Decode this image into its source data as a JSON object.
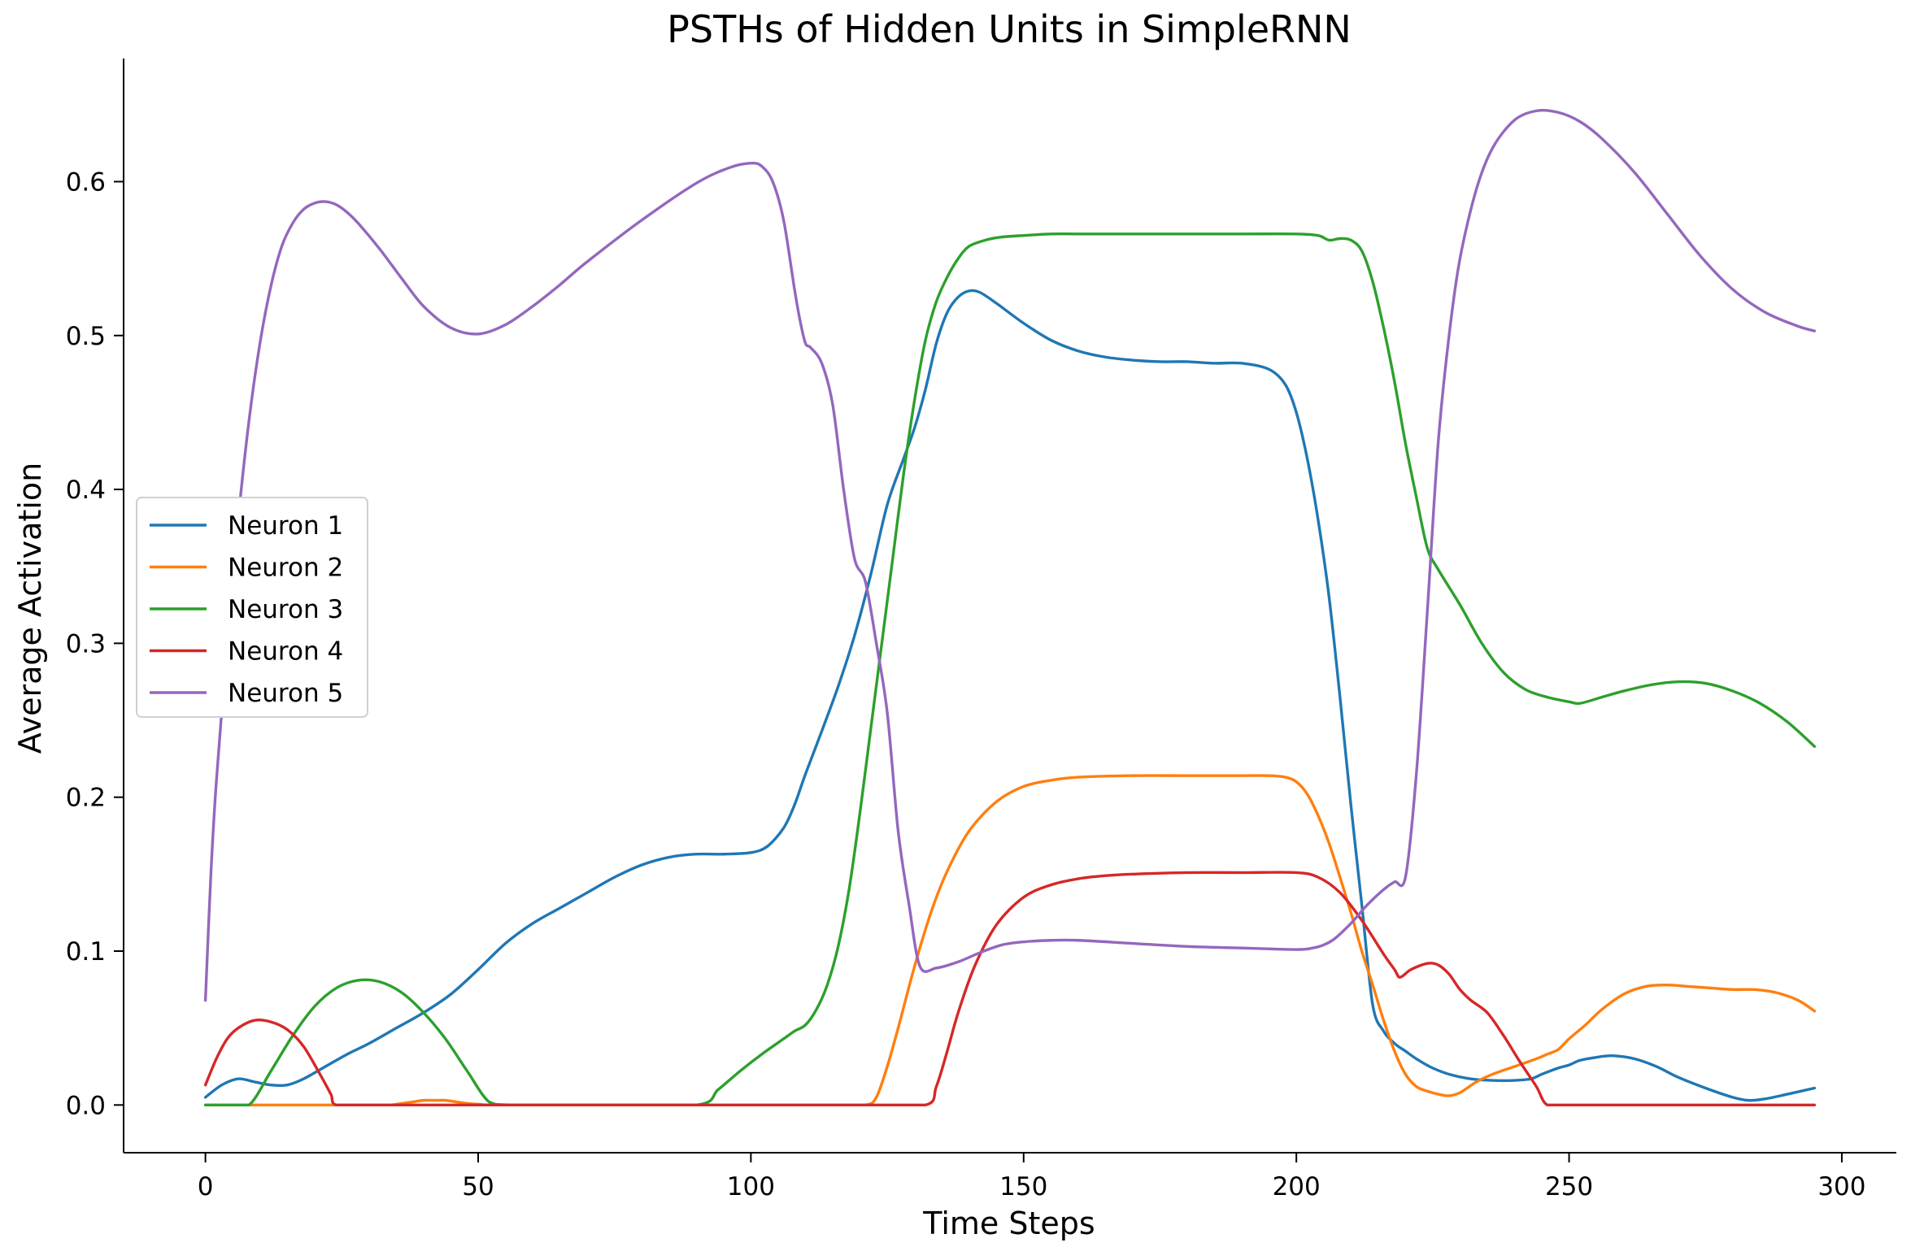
{
  "chart_data": {
    "type": "line",
    "title": "PSTHs of Hidden Units in SimpleRNN",
    "xlabel": "Time Steps",
    "ylabel": "Average Activation",
    "xlim": [
      -15,
      310
    ],
    "ylim": [
      -0.031,
      0.68
    ],
    "xticks": [
      0,
      50,
      100,
      150,
      200,
      250,
      300
    ],
    "xtick_labels": [
      "0",
      "50",
      "100",
      "150",
      "200",
      "250",
      "300"
    ],
    "yticks": [
      0.0,
      0.1,
      0.2,
      0.3,
      0.4,
      0.5,
      0.6
    ],
    "ytick_labels": [
      "0.0",
      "0.1",
      "0.2",
      "0.3",
      "0.4",
      "0.5",
      "0.6"
    ],
    "grid": false,
    "legend_position": "center-left",
    "series": [
      {
        "name": "Neuron 1",
        "color": "#1f77b4",
        "x": [
          0,
          3,
          6,
          9,
          12,
          15,
          18,
          22,
          26,
          30,
          35,
          40,
          45,
          50,
          55,
          60,
          65,
          70,
          75,
          80,
          85,
          90,
          95,
          100,
          103,
          106,
          108,
          110,
          113,
          116,
          119,
          122,
          125,
          128,
          130,
          132,
          134,
          136,
          138,
          140,
          142,
          145,
          150,
          155,
          160,
          165,
          170,
          175,
          180,
          185,
          190,
          195,
          198,
          200,
          202,
          204,
          206,
          208,
          210,
          212,
          214,
          216,
          218,
          220,
          222,
          225,
          228,
          232,
          236,
          240,
          243,
          245,
          248,
          250,
          252,
          255,
          258,
          262,
          266,
          270,
          275,
          280,
          283,
          286,
          290,
          295
        ],
        "y": [
          0.005,
          0.013,
          0.017,
          0.015,
          0.013,
          0.013,
          0.017,
          0.025,
          0.033,
          0.04,
          0.05,
          0.06,
          0.072,
          0.088,
          0.105,
          0.118,
          0.128,
          0.138,
          0.148,
          0.156,
          0.161,
          0.163,
          0.163,
          0.164,
          0.168,
          0.18,
          0.195,
          0.215,
          0.243,
          0.272,
          0.305,
          0.345,
          0.39,
          0.42,
          0.44,
          0.465,
          0.495,
          0.515,
          0.525,
          0.529,
          0.528,
          0.521,
          0.508,
          0.497,
          0.49,
          0.486,
          0.484,
          0.483,
          0.483,
          0.482,
          0.482,
          0.478,
          0.468,
          0.45,
          0.42,
          0.38,
          0.33,
          0.265,
          0.195,
          0.13,
          0.065,
          0.048,
          0.04,
          0.035,
          0.03,
          0.024,
          0.02,
          0.017,
          0.016,
          0.016,
          0.017,
          0.02,
          0.024,
          0.026,
          0.029,
          0.031,
          0.032,
          0.03,
          0.025,
          0.018,
          0.011,
          0.005,
          0.003,
          0.004,
          0.007,
          0.011
        ]
      },
      {
        "name": "Neuron 2",
        "color": "#ff7f0e",
        "x": [
          0,
          10,
          20,
          30,
          34,
          36,
          38,
          40,
          42,
          44,
          46,
          48,
          50,
          52,
          60,
          80,
          100,
          115,
          121,
          123,
          125,
          127,
          130,
          133,
          136,
          140,
          145,
          150,
          155,
          160,
          170,
          180,
          190,
          195,
          198,
          200,
          202,
          204,
          206,
          208,
          210,
          212,
          214,
          216,
          218,
          220,
          222,
          224,
          226,
          228,
          230,
          233,
          236,
          240,
          244,
          246,
          248,
          250,
          253,
          256,
          260,
          264,
          268,
          272,
          276,
          280,
          284,
          288,
          292,
          295
        ],
        "y": [
          0,
          0,
          0,
          0,
          0.0,
          0.001,
          0.002,
          0.003,
          0.003,
          0.003,
          0.002,
          0.001,
          0.0005,
          0,
          0,
          0,
          0,
          0,
          0,
          0.005,
          0.025,
          0.05,
          0.09,
          0.125,
          0.152,
          0.178,
          0.197,
          0.207,
          0.211,
          0.213,
          0.214,
          0.214,
          0.214,
          0.214,
          0.213,
          0.21,
          0.202,
          0.188,
          0.17,
          0.148,
          0.125,
          0.1,
          0.078,
          0.055,
          0.035,
          0.02,
          0.012,
          0.009,
          0.007,
          0.006,
          0.008,
          0.015,
          0.02,
          0.025,
          0.03,
          0.033,
          0.036,
          0.043,
          0.052,
          0.062,
          0.072,
          0.077,
          0.078,
          0.077,
          0.076,
          0.075,
          0.075,
          0.073,
          0.068,
          0.061
        ]
      },
      {
        "name": "Neuron 3",
        "color": "#2ca02c",
        "x": [
          0,
          4,
          8,
          12,
          16,
          20,
          24,
          28,
          32,
          36,
          40,
          44,
          48,
          52,
          56,
          70,
          90,
          94,
          98,
          102,
          106,
          108,
          110,
          112,
          114,
          116,
          118,
          120,
          122,
          124,
          126,
          128,
          130,
          132,
          134,
          136,
          138,
          140,
          143,
          146,
          150,
          155,
          160,
          170,
          180,
          190,
          200,
          204,
          206,
          208,
          210,
          212,
          214,
          216,
          218,
          220,
          222,
          224,
          226,
          230,
          234,
          238,
          242,
          246,
          250,
          252,
          256,
          260,
          265,
          270,
          275,
          280,
          285,
          290,
          295
        ],
        "y": [
          0,
          0,
          0,
          0.022,
          0.045,
          0.064,
          0.076,
          0.081,
          0.08,
          0.073,
          0.06,
          0.043,
          0.022,
          0.002,
          0,
          0,
          0,
          0.01,
          0.022,
          0.033,
          0.043,
          0.048,
          0.052,
          0.062,
          0.078,
          0.103,
          0.14,
          0.19,
          0.245,
          0.3,
          0.355,
          0.41,
          0.458,
          0.497,
          0.522,
          0.538,
          0.55,
          0.558,
          0.562,
          0.564,
          0.565,
          0.566,
          0.566,
          0.566,
          0.566,
          0.566,
          0.566,
          0.565,
          0.562,
          0.563,
          0.562,
          0.555,
          0.535,
          0.505,
          0.47,
          0.43,
          0.395,
          0.362,
          0.348,
          0.325,
          0.3,
          0.281,
          0.27,
          0.265,
          0.262,
          0.261,
          0.265,
          0.269,
          0.273,
          0.275,
          0.274,
          0.269,
          0.261,
          0.249,
          0.233
        ]
      },
      {
        "name": "Neuron 4",
        "color": "#d62728",
        "x": [
          0,
          2,
          4,
          6,
          9,
          12,
          15,
          18,
          21,
          23,
          24,
          30,
          50,
          80,
          100,
          120,
          132,
          134,
          136,
          138,
          141,
          145,
          150,
          155,
          160,
          165,
          170,
          180,
          190,
          200,
          204,
          208,
          212,
          216,
          218,
          219,
          221,
          224,
          226,
          228,
          230,
          232,
          235,
          238,
          241,
          244,
          246,
          250,
          270,
          295
        ],
        "y": [
          0.013,
          0.03,
          0.043,
          0.05,
          0.055,
          0.054,
          0.049,
          0.038,
          0.02,
          0.007,
          0,
          0,
          0,
          0,
          0,
          0,
          0,
          0.012,
          0.035,
          0.06,
          0.09,
          0.117,
          0.135,
          0.143,
          0.147,
          0.149,
          0.15,
          0.151,
          0.151,
          0.151,
          0.148,
          0.138,
          0.12,
          0.098,
          0.088,
          0.083,
          0.088,
          0.092,
          0.091,
          0.085,
          0.075,
          0.068,
          0.06,
          0.045,
          0.028,
          0.012,
          0,
          0,
          0,
          0
        ]
      },
      {
        "name": "Neuron 5",
        "color": "#9467bd",
        "x": [
          0,
          1,
          2,
          4,
          6,
          8,
          10,
          12,
          14,
          16,
          18,
          20,
          22,
          24,
          26,
          28,
          32,
          36,
          40,
          45,
          50,
          55,
          60,
          65,
          70,
          80,
          90,
          96,
          100,
          102,
          104,
          106,
          108,
          109,
          110,
          111,
          113,
          115,
          117,
          119,
          121,
          123,
          125,
          127,
          129,
          131,
          134,
          138,
          142,
          146,
          150,
          155,
          160,
          170,
          180,
          190,
          200,
          203,
          205,
          207,
          210,
          213,
          216,
          218,
          220,
          222,
          224,
          226,
          228,
          230,
          233,
          236,
          240,
          244,
          248,
          252,
          256,
          262,
          268,
          274,
          280,
          286,
          292,
          295
        ],
        "y": [
          0.068,
          0.15,
          0.21,
          0.3,
          0.38,
          0.445,
          0.495,
          0.532,
          0.558,
          0.573,
          0.582,
          0.586,
          0.587,
          0.585,
          0.58,
          0.573,
          0.556,
          0.537,
          0.519,
          0.505,
          0.501,
          0.507,
          0.519,
          0.533,
          0.548,
          0.575,
          0.599,
          0.609,
          0.612,
          0.61,
          0.6,
          0.575,
          0.53,
          0.51,
          0.495,
          0.492,
          0.482,
          0.455,
          0.4,
          0.355,
          0.34,
          0.3,
          0.255,
          0.178,
          0.13,
          0.09,
          0.089,
          0.093,
          0.099,
          0.104,
          0.106,
          0.107,
          0.107,
          0.105,
          0.103,
          0.102,
          0.101,
          0.102,
          0.104,
          0.108,
          0.118,
          0.13,
          0.14,
          0.145,
          0.148,
          0.215,
          0.32,
          0.43,
          0.5,
          0.55,
          0.595,
          0.622,
          0.64,
          0.646,
          0.645,
          0.639,
          0.628,
          0.606,
          0.579,
          0.552,
          0.53,
          0.515,
          0.506,
          0.503
        ]
      }
    ]
  }
}
